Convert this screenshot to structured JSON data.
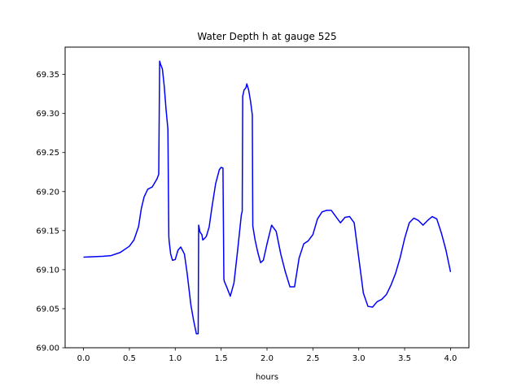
{
  "chart_data": {
    "type": "line",
    "title": "Water Depth h at gauge 525",
    "xlabel": "hours",
    "ylabel": "",
    "xlim": [
      -0.2,
      4.2
    ],
    "ylim": [
      69.0,
      69.385
    ],
    "xticks": [
      0.0,
      0.5,
      1.0,
      1.5,
      2.0,
      2.5,
      3.0,
      3.5,
      4.0
    ],
    "xtick_labels": [
      "0.0",
      "0.5",
      "1.0",
      "1.5",
      "2.0",
      "2.5",
      "3.0",
      "3.5",
      "4.0"
    ],
    "yticks": [
      69.0,
      69.05,
      69.1,
      69.15,
      69.2,
      69.25,
      69.3,
      69.35
    ],
    "ytick_labels": [
      "69.00",
      "69.05",
      "69.10",
      "69.15",
      "69.20",
      "69.25",
      "69.30",
      "69.35"
    ],
    "grid": false,
    "series": [
      {
        "color": "#0000ff",
        "x": [
          0.0,
          0.2,
          0.3,
          0.4,
          0.5,
          0.55,
          0.6,
          0.63,
          0.66,
          0.7,
          0.75,
          0.8,
          0.82,
          0.83,
          0.84,
          0.86,
          0.88,
          0.9,
          0.92,
          0.93,
          0.935,
          0.95,
          0.97,
          1.0,
          1.03,
          1.06,
          1.1,
          1.13,
          1.17,
          1.2,
          1.23,
          1.25,
          1.255,
          1.27,
          1.29,
          1.3,
          1.32,
          1.34,
          1.37,
          1.4,
          1.44,
          1.48,
          1.5,
          1.52,
          1.53,
          1.535,
          1.56,
          1.6,
          1.64,
          1.68,
          1.72,
          1.73,
          1.735,
          1.75,
          1.77,
          1.78,
          1.8,
          1.82,
          1.84,
          1.845,
          1.87,
          1.9,
          1.93,
          1.96,
          2.0,
          2.05,
          2.1,
          2.15,
          2.2,
          2.25,
          2.3,
          2.35,
          2.4,
          2.45,
          2.5,
          2.55,
          2.6,
          2.65,
          2.7,
          2.75,
          2.8,
          2.85,
          2.9,
          2.95,
          3.0,
          3.05,
          3.1,
          3.15,
          3.2,
          3.25,
          3.3,
          3.35,
          3.4,
          3.45,
          3.5,
          3.55,
          3.6,
          3.65,
          3.7,
          3.75,
          3.8,
          3.85,
          3.9,
          3.95,
          4.0
        ],
        "y": [
          69.116,
          69.117,
          69.118,
          69.122,
          69.13,
          69.138,
          69.155,
          69.178,
          69.193,
          69.203,
          69.206,
          69.216,
          69.222,
          69.367,
          69.363,
          69.357,
          69.335,
          69.305,
          69.28,
          69.142,
          69.135,
          69.12,
          69.112,
          69.113,
          69.125,
          69.129,
          69.12,
          69.095,
          69.055,
          69.035,
          69.018,
          69.018,
          69.157,
          69.148,
          69.145,
          69.138,
          69.14,
          69.143,
          69.155,
          69.18,
          69.21,
          69.228,
          69.231,
          69.23,
          69.088,
          69.085,
          69.078,
          69.066,
          69.083,
          69.125,
          69.17,
          69.175,
          69.322,
          69.33,
          69.333,
          69.338,
          69.33,
          69.316,
          69.298,
          69.156,
          69.138,
          69.122,
          69.109,
          69.112,
          69.133,
          69.157,
          69.149,
          69.12,
          69.097,
          69.078,
          69.078,
          69.115,
          69.133,
          69.137,
          69.145,
          69.165,
          69.174,
          69.176,
          69.176,
          69.168,
          69.16,
          69.167,
          69.168,
          69.16,
          69.115,
          69.07,
          69.053,
          69.052,
          69.059,
          69.062,
          69.068,
          69.08,
          69.095,
          69.115,
          69.14,
          69.16,
          69.166,
          69.163,
          69.157,
          69.163,
          69.168,
          69.165,
          69.147,
          69.125,
          69.097
        ]
      }
    ]
  }
}
